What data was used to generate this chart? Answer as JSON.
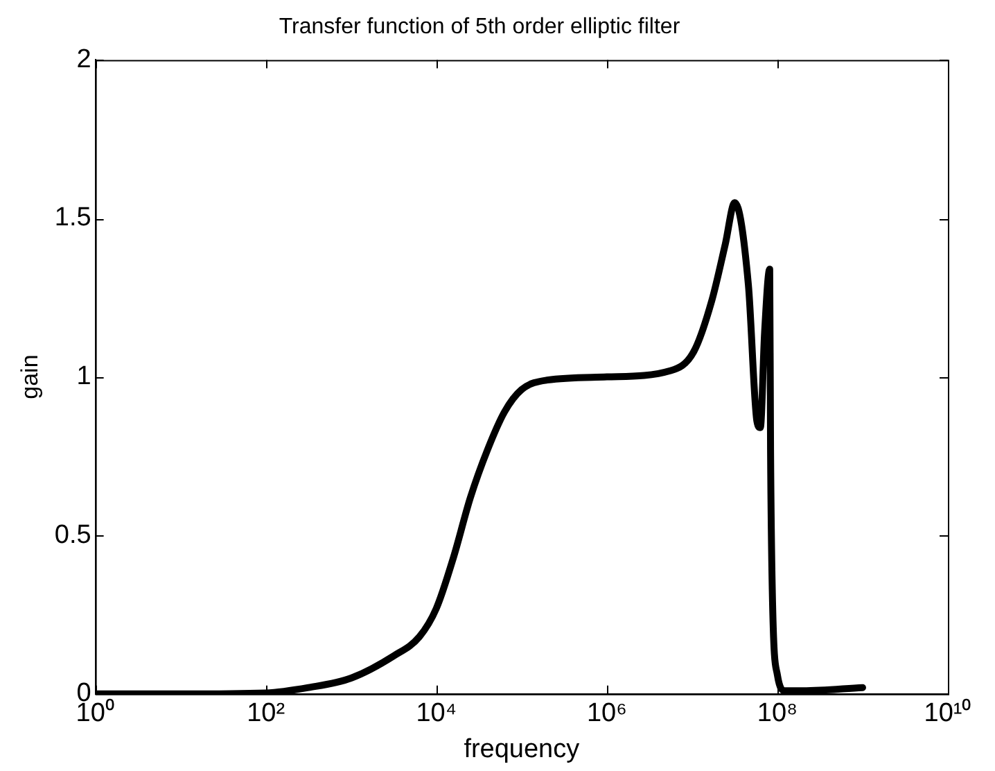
{
  "chart_data": {
    "type": "line",
    "title": "Transfer function of 5th order elliptic filter",
    "xlabel": "frequency",
    "ylabel": "gain",
    "log": "x",
    "x": [
      1,
      10,
      100,
      316,
      1000,
      3162,
      6310,
      10000,
      15850,
      25120,
      39810,
      63100,
      100000,
      199500,
      1000000,
      5623000,
      10470000,
      16980000,
      24550000,
      31620000,
      45710000,
      57540000,
      63100000,
      70790000,
      81280000,
      83180000,
      87100000,
      100000000,
      123000000,
      200000000,
      1000000000
    ],
    "series": [
      {
        "color": "#000000",
        "values": [
          0,
          0,
          0.003,
          0.02,
          0.05,
          0.12,
          0.18,
          0.27,
          0.43,
          0.62,
          0.77,
          0.89,
          0.96,
          0.99,
          1.0,
          1.02,
          1.08,
          1.24,
          1.42,
          1.55,
          1.29,
          0.86,
          0.84,
          1.14,
          1.34,
          0.77,
          0.33,
          0.06,
          0.01,
          0.01,
          0.02
        ]
      }
    ],
    "xlim": [
      1,
      10000000000
    ],
    "xticks": [
      {
        "value": 1,
        "label": "10⁰"
      },
      {
        "value": 100,
        "label": "10²"
      },
      {
        "value": 10000,
        "label": "10⁴"
      },
      {
        "value": 1000000,
        "label": "10⁶"
      },
      {
        "value": 100000000,
        "label": "10⁸"
      },
      {
        "value": 10000000000,
        "label": "10¹⁰"
      }
    ],
    "ylim": [
      0,
      2
    ],
    "yticks": [
      0,
      {
        "value": 0.5,
        "label": "0.5"
      },
      1,
      {
        "value": 1.5,
        "label": "1.5"
      },
      2
    ],
    "grid": false,
    "legend": false,
    "marker": "none",
    "line_style": "solid"
  }
}
